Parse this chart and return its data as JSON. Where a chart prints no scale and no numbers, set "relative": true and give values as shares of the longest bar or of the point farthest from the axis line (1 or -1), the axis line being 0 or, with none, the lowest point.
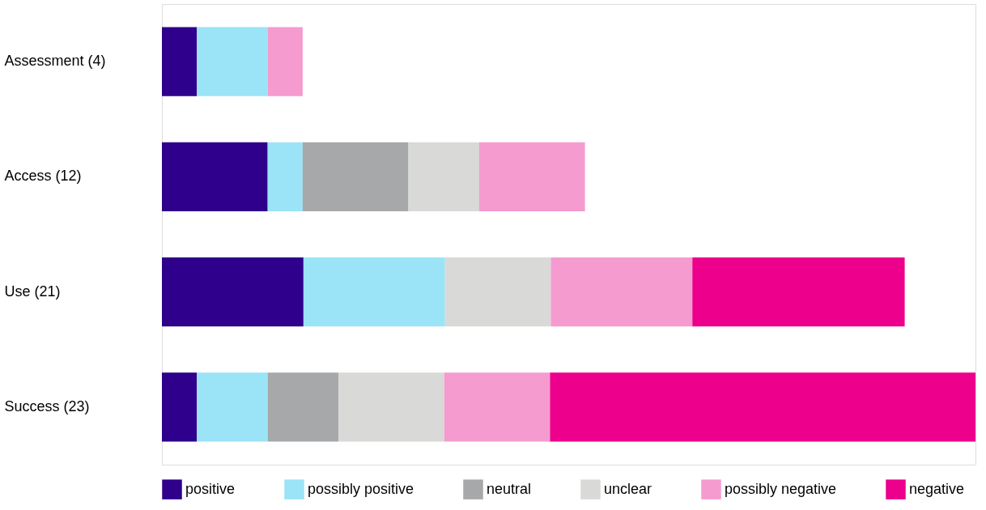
{
  "chart_data": {
    "type": "bar",
    "orientation": "horizontal",
    "stacked": true,
    "relative": true,
    "legend": "bottom",
    "categories": [
      "Assessment (4)",
      "Access (12)",
      "Use (21)",
      "Success (23)"
    ],
    "series": [
      {
        "name": "positive",
        "color": "#2e008b",
        "values": [
          0.043,
          0.13,
          0.174,
          0.043
        ]
      },
      {
        "name": "possibly positive",
        "color": "#9be3f6",
        "values": [
          0.087,
          0.043,
          0.174,
          0.087
        ]
      },
      {
        "name": "neutral",
        "color": "#a7a8aa",
        "values": [
          null,
          0.13,
          null,
          0.087
        ]
      },
      {
        "name": "unclear",
        "color": "#d9d9d7",
        "values": [
          null,
          0.087,
          0.13,
          0.13
        ]
      },
      {
        "name": "possibly negative",
        "color": "#f59bd0",
        "values": [
          0.043,
          0.13,
          0.174,
          0.13
        ]
      },
      {
        "name": "negative",
        "color": "#ec008c",
        "values": [
          null,
          null,
          0.261,
          0.523
        ]
      }
    ]
  }
}
